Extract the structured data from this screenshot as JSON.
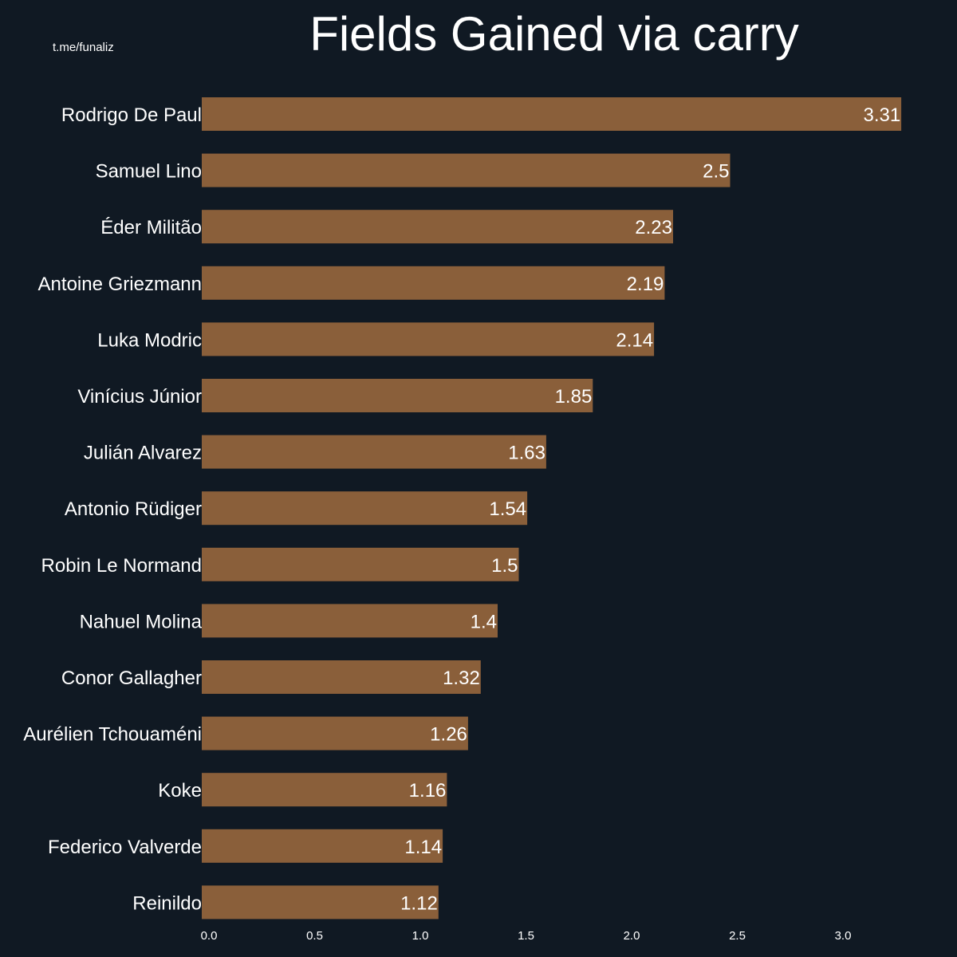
{
  "watermark": "t.me/funaliz",
  "colors": {
    "background": "#101923",
    "bar": "#8a5f3a",
    "text": "#ffffff"
  },
  "chart_data": {
    "type": "bar",
    "orientation": "horizontal",
    "title": "Fields Gained via carry",
    "xlabel": "",
    "ylabel": "",
    "grid": false,
    "xlim": [
      0,
      3.31
    ],
    "x_ticks": [
      "0.0",
      "0.5",
      "1.0",
      "1.5",
      "2.0",
      "2.5",
      "3.0"
    ],
    "categories": [
      "Rodrigo De Paul",
      "Samuel Lino",
      "Éder Militão",
      "Antoine Griezmann",
      "Luka Modric",
      "Vinícius Júnior",
      "Julián Alvarez",
      "Antonio Rüdiger",
      "Robin Le Normand",
      "Nahuel Molina",
      "Conor Gallagher",
      "Aurélien Tchouaméni",
      "Koke",
      "Federico Valverde",
      "Reinildo"
    ],
    "values": [
      3.31,
      2.5,
      2.23,
      2.19,
      2.14,
      1.85,
      1.63,
      1.54,
      1.5,
      1.4,
      1.32,
      1.26,
      1.16,
      1.14,
      1.12
    ],
    "value_labels": [
      "3.31",
      "2.5",
      "2.23",
      "2.19",
      "2.14",
      "1.85",
      "1.63",
      "1.54",
      "1.5",
      "1.4",
      "1.32",
      "1.26",
      "1.16",
      "1.14",
      "1.12"
    ]
  }
}
